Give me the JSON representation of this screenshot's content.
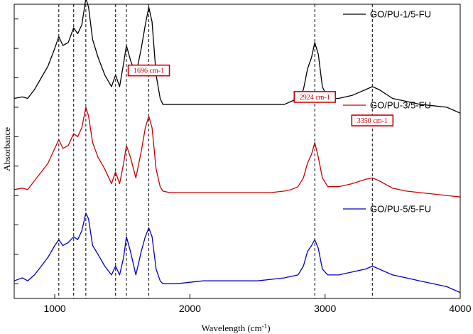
{
  "chart_data": {
    "type": "line",
    "title": "",
    "xlabel": "Wavelength (cm",
    "xlabel_sup": "-1",
    "xlabel_close": ")",
    "ylabel": "Absorbance",
    "xlim": [
      700,
      4000
    ],
    "ylim": [
      0,
      1
    ],
    "x_ticks": [
      1000,
      2000,
      3000,
      4000
    ],
    "x_tick_labels": [
      "1000",
      "2000",
      "3000",
      "4000"
    ],
    "y_ticks": [
      0.05,
      0.15,
      0.25,
      0.35,
      0.45,
      0.55,
      0.65,
      0.75,
      0.85,
      0.95
    ],
    "grid": false,
    "legend_position": "right",
    "reference_lines": [
      1030,
      1140,
      1230,
      1450,
      1530,
      1696,
      2924,
      3350
    ],
    "series": [
      {
        "name": "GO/PU-1/5-FU",
        "color": "#000000",
        "offset": 0.66,
        "x": [
          700,
          760,
          800,
          850,
          900,
          950,
          1000,
          1030,
          1060,
          1100,
          1140,
          1170,
          1200,
          1230,
          1250,
          1280,
          1320,
          1370,
          1420,
          1450,
          1480,
          1510,
          1530,
          1560,
          1600,
          1640,
          1670,
          1696,
          1720,
          1750,
          1780,
          1800,
          1850,
          1900,
          2000,
          2100,
          2200,
          2300,
          2400,
          2500,
          2600,
          2700,
          2750,
          2800,
          2840,
          2870,
          2900,
          2924,
          2950,
          2980,
          3020,
          3100,
          3200,
          3300,
          3350,
          3400,
          3500,
          3600,
          3700,
          3800,
          3900,
          4000
        ],
        "values": [
          0.02,
          0.025,
          0.02,
          0.05,
          0.09,
          0.13,
          0.19,
          0.23,
          0.2,
          0.21,
          0.26,
          0.24,
          0.27,
          0.36,
          0.33,
          0.22,
          0.16,
          0.1,
          0.06,
          0.1,
          0.06,
          0.14,
          0.2,
          0.15,
          0.1,
          0.19,
          0.27,
          0.33,
          0.28,
          0.1,
          0.02,
          0.0,
          0.0,
          0.0,
          0.0,
          0.0,
          0.0,
          0.0,
          0.0,
          0.0,
          0.0,
          0.0,
          0.01,
          0.02,
          0.05,
          0.12,
          0.16,
          0.21,
          0.17,
          0.06,
          0.02,
          0.02,
          0.03,
          0.05,
          0.06,
          0.05,
          0.02,
          0.01,
          0.0,
          -0.005,
          -0.01,
          -0.03
        ]
      },
      {
        "name": "GO/PU-3/5-FU",
        "color": "#cc0000",
        "offset": 0.36,
        "x": [
          700,
          760,
          800,
          850,
          900,
          950,
          1000,
          1030,
          1060,
          1100,
          1140,
          1170,
          1200,
          1230,
          1250,
          1280,
          1320,
          1370,
          1420,
          1450,
          1480,
          1510,
          1530,
          1560,
          1600,
          1640,
          1670,
          1696,
          1720,
          1750,
          1780,
          1800,
          1850,
          1900,
          2000,
          2100,
          2200,
          2300,
          2400,
          2500,
          2600,
          2700,
          2750,
          2800,
          2840,
          2870,
          2900,
          2924,
          2950,
          2980,
          3020,
          3100,
          3200,
          3300,
          3350,
          3400,
          3500,
          3600,
          3700,
          3800,
          3900,
          4000
        ],
        "values": [
          0.01,
          0.015,
          0.01,
          0.04,
          0.07,
          0.1,
          0.15,
          0.18,
          0.15,
          0.16,
          0.2,
          0.19,
          0.22,
          0.29,
          0.26,
          0.17,
          0.12,
          0.08,
          0.03,
          0.07,
          0.03,
          0.1,
          0.16,
          0.12,
          0.05,
          0.14,
          0.22,
          0.26,
          0.22,
          0.08,
          0.02,
          0.005,
          0.0,
          0.0,
          0.0,
          0.0,
          0.0,
          0.0,
          0.0,
          0.0,
          0.0,
          0.005,
          0.01,
          0.02,
          0.05,
          0.1,
          0.13,
          0.17,
          0.12,
          0.05,
          0.02,
          0.02,
          0.03,
          0.045,
          0.05,
          0.04,
          0.015,
          0.005,
          0.0,
          -0.005,
          -0.01,
          -0.015
        ]
      },
      {
        "name": "GO/PU-5/5-FU",
        "color": "#0000cc",
        "offset": 0.04,
        "x": [
          700,
          760,
          800,
          850,
          900,
          950,
          1000,
          1030,
          1060,
          1100,
          1140,
          1170,
          1200,
          1230,
          1250,
          1280,
          1320,
          1370,
          1420,
          1450,
          1480,
          1510,
          1530,
          1560,
          1600,
          1640,
          1670,
          1696,
          1720,
          1750,
          1780,
          1800,
          1850,
          1900,
          2000,
          2100,
          2200,
          2300,
          2400,
          2500,
          2600,
          2700,
          2750,
          2800,
          2840,
          2870,
          2900,
          2924,
          2950,
          2980,
          3020,
          3100,
          3200,
          3300,
          3350,
          3400,
          3500,
          3600,
          3700,
          3800,
          3900,
          4000
        ],
        "values": [
          0.02,
          0.03,
          0.02,
          0.04,
          0.07,
          0.1,
          0.14,
          0.16,
          0.14,
          0.15,
          0.17,
          0.16,
          0.19,
          0.25,
          0.23,
          0.14,
          0.11,
          0.07,
          0.04,
          0.07,
          0.04,
          0.1,
          0.17,
          0.12,
          0.04,
          0.12,
          0.17,
          0.2,
          0.17,
          0.06,
          0.02,
          0.01,
          0.01,
          0.01,
          0.015,
          0.02,
          0.02,
          0.02,
          0.02,
          0.02,
          0.025,
          0.03,
          0.035,
          0.04,
          0.07,
          0.12,
          0.14,
          0.16,
          0.13,
          0.06,
          0.04,
          0.04,
          0.05,
          0.06,
          0.07,
          0.06,
          0.04,
          0.03,
          0.02,
          0.01,
          0.0,
          -0.02
        ]
      }
    ],
    "annotations": [
      {
        "text": "1696 cm-1",
        "x": 1696,
        "y": 0.775,
        "color": "#cc0000"
      },
      {
        "text": "2924 cm-1",
        "x": 2924,
        "y": 0.685,
        "color": "#cc0000"
      },
      {
        "text": "3350 cm-1",
        "x": 3350,
        "y": 0.605,
        "color": "#cc0000"
      }
    ]
  }
}
